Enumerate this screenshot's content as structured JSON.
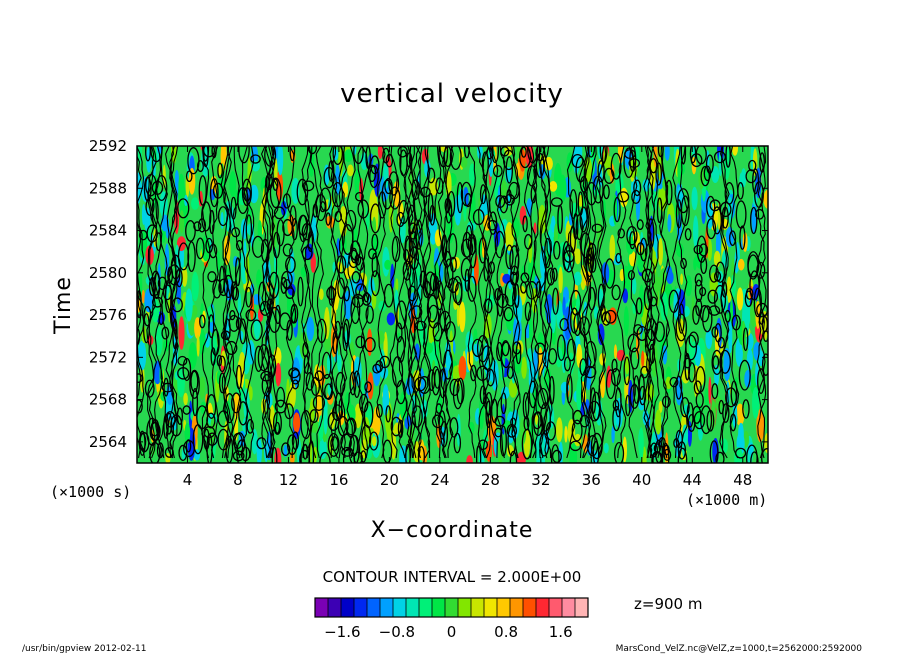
{
  "chart_data": {
    "type": "heatmap",
    "title": "vertical velocity",
    "xlabel": "X−coordinate",
    "ylabel": "Time",
    "x_unit": "(×1000 m)",
    "y_unit": "(×1000 s)",
    "xlim": [
      0,
      50
    ],
    "ylim": [
      2562,
      2592
    ],
    "x_ticks": [
      4,
      8,
      12,
      16,
      20,
      24,
      28,
      32,
      36,
      40,
      44,
      48
    ],
    "y_ticks": [
      2564,
      2568,
      2572,
      2576,
      2580,
      2584,
      2588,
      2592
    ],
    "contour_interval": "CONTOUR INTERVAL = 2.000E+00",
    "colorbar": {
      "colors": [
        "#7a00b4",
        "#3c00b4",
        "#0000c8",
        "#0028f0",
        "#0064ff",
        "#00a0ff",
        "#00d2e6",
        "#00e6b4",
        "#00f078",
        "#00e646",
        "#32dc32",
        "#82e600",
        "#c8e600",
        "#f0e600",
        "#ffc800",
        "#ff9600",
        "#ff5000",
        "#ff2832",
        "#ff5a6e",
        "#ff8ca0",
        "#ffb4b4"
      ],
      "tick_labels": [
        "−1.6",
        "−0.8",
        "0",
        "0.8",
        "1.6"
      ],
      "tick_values": [
        -1.6,
        -0.8,
        0,
        0.8,
        1.6
      ],
      "range": [
        -2.0,
        2.0
      ]
    },
    "z_level": "z=900 m"
  },
  "footer": {
    "left": "/usr/bin/gpview  2012-02-11",
    "right": "MarsCond_VelZ.nc@VelZ,z=1000,t=2562000:2592000"
  }
}
